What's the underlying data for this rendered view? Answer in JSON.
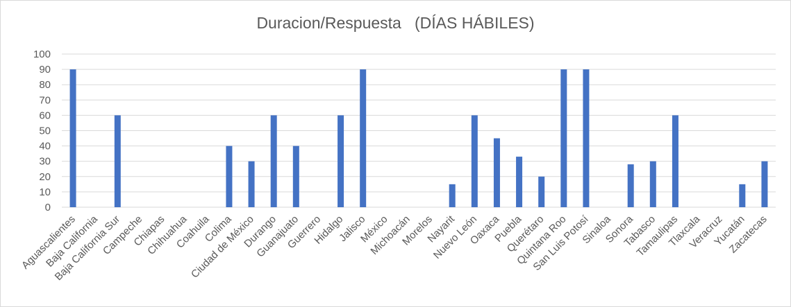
{
  "chart_data": {
    "type": "bar",
    "title": "Duracion/Respuesta   (DÍAS HÁBILES)",
    "xlabel": "",
    "ylabel": "",
    "ylim": [
      0,
      100
    ],
    "yticks": [
      0,
      10,
      20,
      30,
      40,
      50,
      60,
      70,
      80,
      90,
      100
    ],
    "grid": true,
    "legend": "none",
    "bar_color": "#4472c4",
    "categories": [
      "Aguascalientes",
      "Baja California",
      "Baja California Sur",
      "Campeche",
      "Chiapas",
      "Chihuahua",
      "Coahuila",
      "Colima",
      "Ciudad de México",
      "Durango",
      "Guanajuato",
      "Guerrero",
      "Hidalgo",
      "Jalisco",
      "México",
      "Michoacán",
      "Morelos",
      "Nayarit",
      "Nuevo León",
      "Oaxaca",
      "Puebla",
      "Querétaro",
      "Quintana Roo",
      "San Luis Potosí",
      "Sinaloa",
      "Sonora",
      "Tabasco",
      "Tamaulipas",
      "Tlaxcala",
      "Veracruz",
      "Yucatán",
      "Zacatecas"
    ],
    "values": [
      90,
      0,
      60,
      0,
      0,
      0,
      0,
      40,
      30,
      60,
      40,
      0,
      60,
      90,
      0,
      0,
      0,
      15,
      60,
      45,
      33,
      20,
      90,
      90,
      0,
      28,
      30,
      60,
      0,
      0,
      15,
      30
    ]
  }
}
